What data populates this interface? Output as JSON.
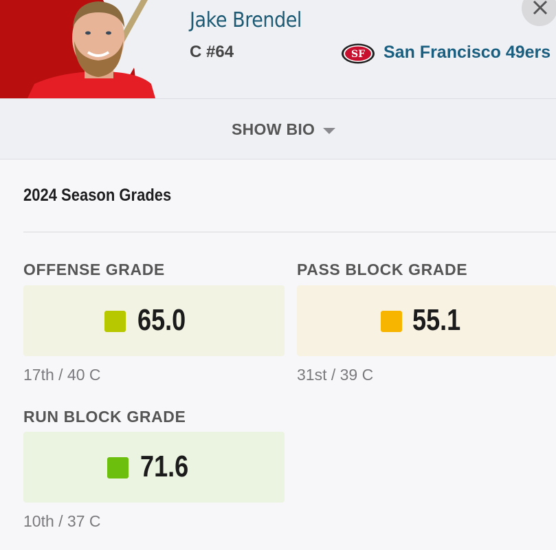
{
  "player": {
    "name": "Jake Brendel",
    "position_number": "C #64",
    "team": "San Francisco 49ers",
    "team_logo_text": "SF"
  },
  "bio": {
    "toggle_label": "SHOW BIO"
  },
  "grades": {
    "section_title": "2024 Season Grades",
    "items": [
      {
        "label": "OFFENSE GRADE",
        "value": "65.0",
        "rank": "17th / 40 C",
        "color": "#b8c800",
        "bg": "#f3f3e4"
      },
      {
        "label": "PASS BLOCK GRADE",
        "value": "55.1",
        "rank": "31st / 39 C",
        "color": "#f7b500",
        "bg": "#f8f2e3"
      },
      {
        "label": "RUN BLOCK GRADE",
        "value": "71.6",
        "rank": "10th / 37 C",
        "color": "#6cbf0d",
        "bg": "#ebf3e1"
      }
    ]
  },
  "colors": {
    "name_color": "#1d5a74",
    "team_color": "#1a5f80",
    "niners_red": "#aa0000",
    "niners_gold": "#b3995d"
  }
}
